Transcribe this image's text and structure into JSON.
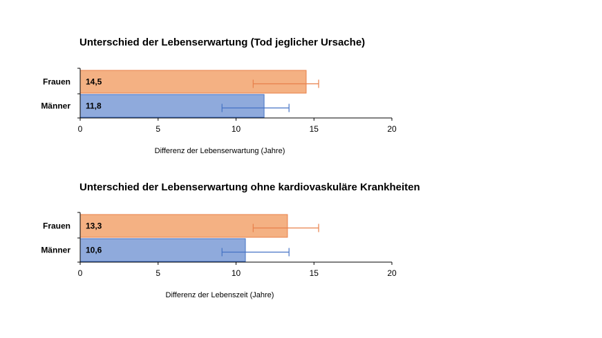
{
  "colors": {
    "frauen": "#f4b183",
    "frauen_border": "#e8804a",
    "maenner": "#8faadc",
    "maenner_border": "#4472c4"
  },
  "chart_data": [
    {
      "type": "bar",
      "orientation": "horizontal",
      "title": "Unterschied der Lebenserwartung (Tod jeglicher Ursache)",
      "xlabel": "Differenz der Lebenserwartung (Jahre)",
      "categories": [
        "Frauen",
        "Männer"
      ],
      "values": [
        14.5,
        11.8
      ],
      "data_labels": [
        "14,5",
        "11,8"
      ],
      "error_low": [
        11.1,
        9.1
      ],
      "error_high": [
        15.3,
        13.4
      ],
      "xlim": [
        0,
        20
      ],
      "xticks": [
        "0",
        "5",
        "10",
        "15",
        "20"
      ],
      "grid": false
    },
    {
      "type": "bar",
      "orientation": "horizontal",
      "title": "Unterschied der Lebenserwartung ohne kardiovaskuläre Krankheiten",
      "xlabel": "Differenz der Lebenszeit (Jahre)",
      "categories": [
        "Frauen",
        "Männer"
      ],
      "values": [
        13.3,
        10.6
      ],
      "data_labels": [
        "13,3",
        "10,6"
      ],
      "error_low": [
        11.1,
        9.1
      ],
      "error_high": [
        15.3,
        13.4
      ],
      "xlim": [
        0,
        20
      ],
      "xticks": [
        "0",
        "5",
        "10",
        "15",
        "20"
      ],
      "grid": false
    }
  ]
}
